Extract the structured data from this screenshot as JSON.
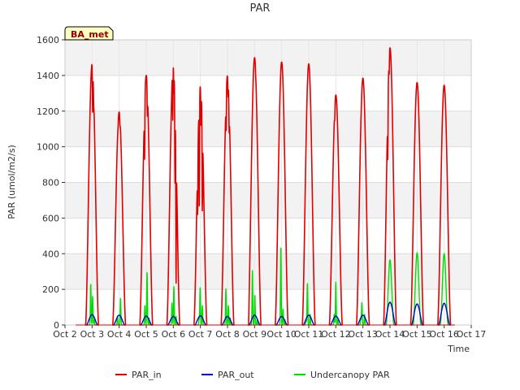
{
  "chart_data": {
    "type": "line",
    "title": "PAR",
    "xlabel": "Time",
    "ylabel": "PAR (umol/m2/s)",
    "badge": "BA_met",
    "x_ticks": [
      "Oct 2",
      "Oct 3",
      "Oct 4",
      "Oct 5",
      "Oct 6",
      "Oct 7",
      "Oct 8",
      "Oct 9",
      "Oct 10",
      "Oct 11",
      "Oct 12",
      "Oct 13",
      "Oct 14",
      "Oct 15",
      "Oct 16",
      "Oct 17"
    ],
    "xlim": [
      2,
      17
    ],
    "ylim": [
      0,
      1600
    ],
    "y_ticks": [
      0,
      200,
      400,
      600,
      800,
      1000,
      1200,
      1400,
      1600
    ],
    "bands": [
      [
        200,
        400
      ],
      [
        600,
        800
      ],
      [
        1000,
        1200
      ],
      [
        1400,
        1600
      ]
    ],
    "series": [
      {
        "name": "PAR_in",
        "color": "#e00000",
        "peaks": [
          {
            "day": 3,
            "peak": 1465,
            "jitter": [
              [
                0.02,
                -250
              ],
              [
                0.06,
                -60
              ]
            ]
          },
          {
            "day": 4,
            "peak": 1195,
            "jitter": [
              [
                -0.04,
                -20
              ],
              [
                0.03,
                -40
              ]
            ]
          },
          {
            "day": 5,
            "peak": 1400,
            "jitter": [
              [
                -0.06,
                -300
              ],
              [
                0.04,
                -150
              ]
            ]
          },
          {
            "day": 6,
            "peak": 1470,
            "jitter": [
              [
                -0.02,
                -300
              ],
              [
                0.02,
                -150
              ],
              [
                0.06,
                -500
              ],
              [
                0.1,
                -800
              ]
            ]
          },
          {
            "day": 7,
            "peak": 1340,
            "jitter": [
              [
                -0.1,
                -300
              ],
              [
                -0.04,
                -600
              ],
              [
                0.02,
                -200
              ],
              [
                0.07,
                -500
              ]
            ]
          },
          {
            "day": 8,
            "peak": 1400,
            "jitter": [
              [
                -0.05,
                -200
              ],
              [
                0.02,
                -100
              ],
              [
                0.06,
                -150
              ]
            ]
          },
          {
            "day": 9,
            "peak": 1500,
            "jitter": [
              [
                -0.22,
                -50
              ],
              [
                0.04,
                -20
              ]
            ]
          },
          {
            "day": 10,
            "peak": 1475,
            "jitter": []
          },
          {
            "day": 11,
            "peak": 1465,
            "jitter": []
          },
          {
            "day": 12,
            "peak": 1290,
            "jitter": [
              [
                -0.04,
                -70
              ]
            ]
          },
          {
            "day": 13,
            "peak": 1385,
            "jitter": []
          },
          {
            "day": 14,
            "peak": 1555,
            "jitter": [
              [
                -0.08,
                -300
              ],
              [
                -0.03,
                -100
              ]
            ]
          },
          {
            "day": 15,
            "peak": 1360,
            "jitter": []
          },
          {
            "day": 16,
            "peak": 1345,
            "jitter": []
          }
        ]
      },
      {
        "name": "PAR_out",
        "color": "#0000cc",
        "peaks": [
          {
            "day": 3,
            "peak": 58
          },
          {
            "day": 4,
            "peak": 55
          },
          {
            "day": 5,
            "peak": 50
          },
          {
            "day": 6,
            "peak": 48
          },
          {
            "day": 7,
            "peak": 52
          },
          {
            "day": 8,
            "peak": 48
          },
          {
            "day": 9,
            "peak": 55
          },
          {
            "day": 10,
            "peak": 48
          },
          {
            "day": 11,
            "peak": 55
          },
          {
            "day": 12,
            "peak": 50
          },
          {
            "day": 13,
            "peak": 55
          },
          {
            "day": 14,
            "peak": 128
          },
          {
            "day": 15,
            "peak": 118
          },
          {
            "day": 16,
            "peak": 122
          }
        ]
      },
      {
        "name": "Undercanopy PAR",
        "color": "#00dd00",
        "peaks": [
          {
            "day": 3,
            "spikes": [
              [
                -0.05,
                230
              ],
              [
                0.02,
                160
              ],
              [
                0.08,
                30
              ]
            ]
          },
          {
            "day": 4,
            "spikes": [
              [
                -0.06,
                50
              ],
              [
                0.05,
                150
              ]
            ]
          },
          {
            "day": 5,
            "spikes": [
              [
                -0.05,
                110
              ],
              [
                0.03,
                300
              ],
              [
                0.1,
                40
              ]
            ]
          },
          {
            "day": 6,
            "spikes": [
              [
                -0.05,
                125
              ],
              [
                0.02,
                215
              ],
              [
                0.1,
                50
              ]
            ]
          },
          {
            "day": 7,
            "spikes": [
              [
                -0.05,
                30
              ],
              [
                -0.01,
                215
              ],
              [
                0.07,
                110
              ]
            ]
          },
          {
            "day": 8,
            "spikes": [
              [
                -0.06,
                205
              ],
              [
                0.03,
                110
              ],
              [
                0.1,
                40
              ]
            ]
          },
          {
            "day": 9,
            "spikes": [
              [
                -0.08,
                310
              ],
              [
                0.01,
                170
              ],
              [
                0.1,
                30
              ]
            ]
          },
          {
            "day": 10,
            "spikes": [
              [
                -0.03,
                440
              ],
              [
                0.05,
                90
              ],
              [
                0.12,
                30
              ]
            ]
          },
          {
            "day": 11,
            "spikes": [
              [
                -0.1,
                30
              ],
              [
                -0.05,
                235
              ],
              [
                0.05,
                60
              ]
            ]
          },
          {
            "day": 12,
            "spikes": [
              [
                -0.06,
                60
              ],
              [
                0.0,
                240
              ],
              [
                0.07,
                30
              ]
            ]
          },
          {
            "day": 13,
            "spikes": [
              [
                -0.08,
                30
              ],
              [
                -0.04,
                125
              ],
              [
                0.06,
                60
              ]
            ]
          },
          {
            "day": 14,
            "smooth": 365
          },
          {
            "day": 15,
            "smooth": 405
          },
          {
            "day": 16,
            "smooth": 400
          }
        ]
      }
    ],
    "legend": {
      "position": "bottom-center",
      "entries": [
        "PAR_in",
        "PAR_out",
        "Undercanopy PAR"
      ]
    },
    "grid": true
  }
}
